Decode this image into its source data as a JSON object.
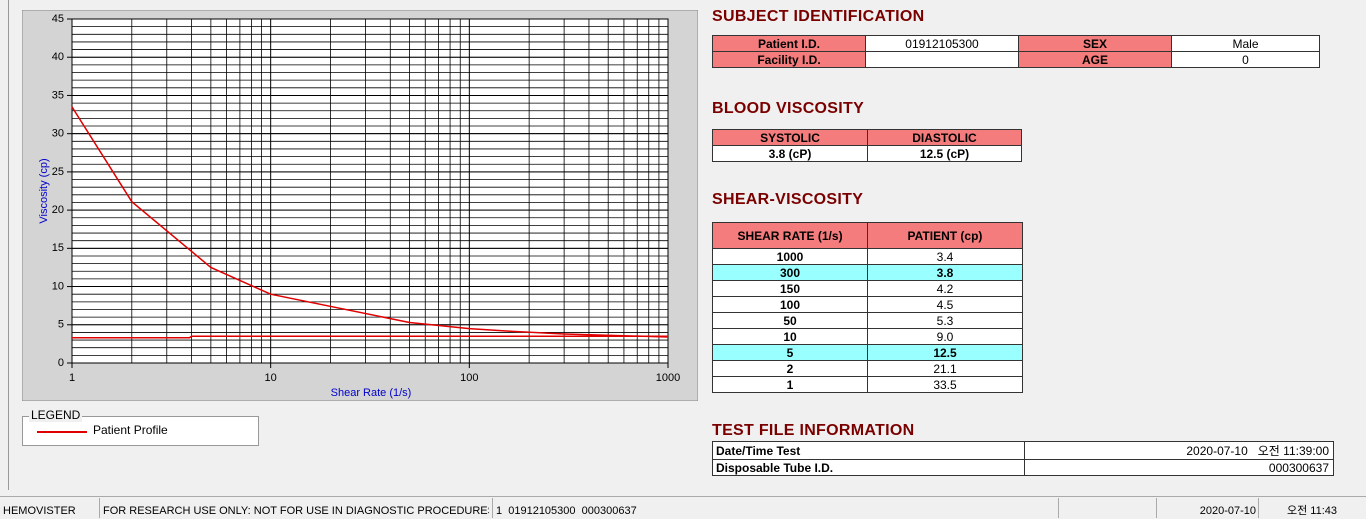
{
  "chart": {
    "type": "line",
    "xlabel": "Shear Rate (1/s)",
    "ylabel": "Viscosity (cp)",
    "xscale": "log",
    "xlim": [
      1,
      1000
    ],
    "xticks": [
      1,
      10,
      100,
      1000
    ],
    "ylim": [
      0,
      45
    ],
    "yticks": [
      0,
      5,
      10,
      15,
      20,
      25,
      30,
      35,
      40,
      45
    ],
    "grid": true,
    "series": [
      {
        "name": "Patient Profile",
        "color": "#e00000",
        "x": [
          1,
          2,
          5,
          10,
          50,
          100,
          150,
          300,
          1000
        ],
        "values": [
          33.5,
          21.1,
          12.5,
          9.0,
          5.3,
          4.5,
          4.2,
          3.8,
          3.4
        ]
      },
      {
        "color": "#e00000",
        "x": [
          1,
          3.9,
          4,
          1000
        ],
        "values": [
          3.3,
          3.3,
          3.5,
          3.5
        ]
      }
    ],
    "legend_title": "LEGEND"
  },
  "subject": {
    "title": "SUBJECT IDENTIFICATION",
    "rows": [
      [
        "Patient I.D.",
        "01912105300",
        "SEX",
        "Male"
      ],
      [
        "Facility I.D.",
        "",
        "AGE",
        "0"
      ]
    ]
  },
  "blood": {
    "title": "BLOOD VISCOSITY",
    "header": [
      "SYSTOLIC",
      "DIASTOLIC"
    ],
    "row": [
      "3.8 (cP)",
      "12.5 (cP)"
    ]
  },
  "shear": {
    "title": "SHEAR-VISCOSITY",
    "header": [
      "SHEAR RATE (1/s)",
      "PATIENT (cp)"
    ],
    "rows": [
      [
        "1000",
        "3.4"
      ],
      [
        "300",
        "3.8"
      ],
      [
        "150",
        "4.2"
      ],
      [
        "100",
        "4.5"
      ],
      [
        "50",
        "5.3"
      ],
      [
        "10",
        "9.0"
      ],
      [
        "5",
        "12.5"
      ],
      [
        "2",
        "21.1"
      ],
      [
        "1",
        "33.5"
      ]
    ]
  },
  "testfile": {
    "title": "TEST FILE INFORMATION",
    "rows": [
      [
        "Date/Time Test",
        "2020-07-10   오전 11:39:00"
      ],
      [
        "Disposable Tube I.D.",
        "000300637"
      ]
    ]
  },
  "status": [
    "HEMOVISTER",
    "FOR RESEARCH USE ONLY: NOT FOR USE IN DIAGNOSTIC PROCEDURES",
    "1  01912105300  000300637",
    "2020-07-10",
    "오전 11:43"
  ]
}
